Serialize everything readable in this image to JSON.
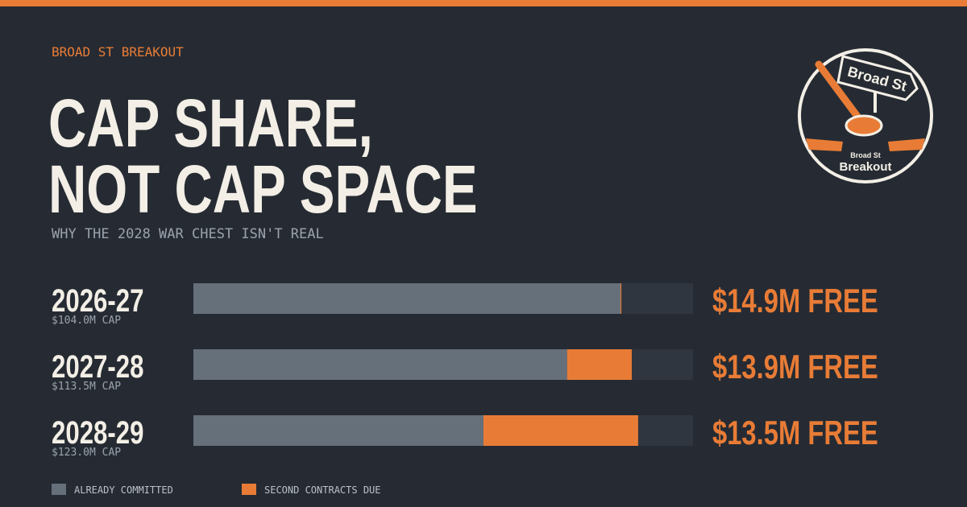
{
  "brand": "BROAD ST BREAKOUT",
  "title_lines": [
    "CAP SHARE,",
    "NOT CAP SPACE"
  ],
  "subtitle": "WHY THE 2028 WAR CHEST ISN'T REAL",
  "logo": {
    "sign": "Broad St",
    "small": "Broad St",
    "name": "Breakout"
  },
  "chart_data": {
    "type": "bar",
    "orientation": "horizontal",
    "stacked": true,
    "categories": [
      "2026-27",
      "2027-28",
      "2028-29"
    ],
    "caps": {
      "values": [
        104.0,
        113.5,
        123.0
      ],
      "value_labels": [
        "$104.0M CAP",
        "$113.5M CAP",
        "$123.0M CAP"
      ]
    },
    "series": [
      {
        "name": "ALREADY COMMITTED",
        "color": "#66707b",
        "values": [
          88.9,
          84.9,
          71.4
        ]
      },
      {
        "name": "SECOND CONTRACTS DUE",
        "color": "#e87c36",
        "values": [
          0.2,
          14.7,
          38.1
        ]
      }
    ],
    "free": {
      "values": [
        14.9,
        13.9,
        13.5
      ],
      "value_labels": [
        "$14.9M FREE",
        "$13.9M FREE",
        "$13.5M FREE"
      ],
      "color": "#e87c36"
    }
  }
}
